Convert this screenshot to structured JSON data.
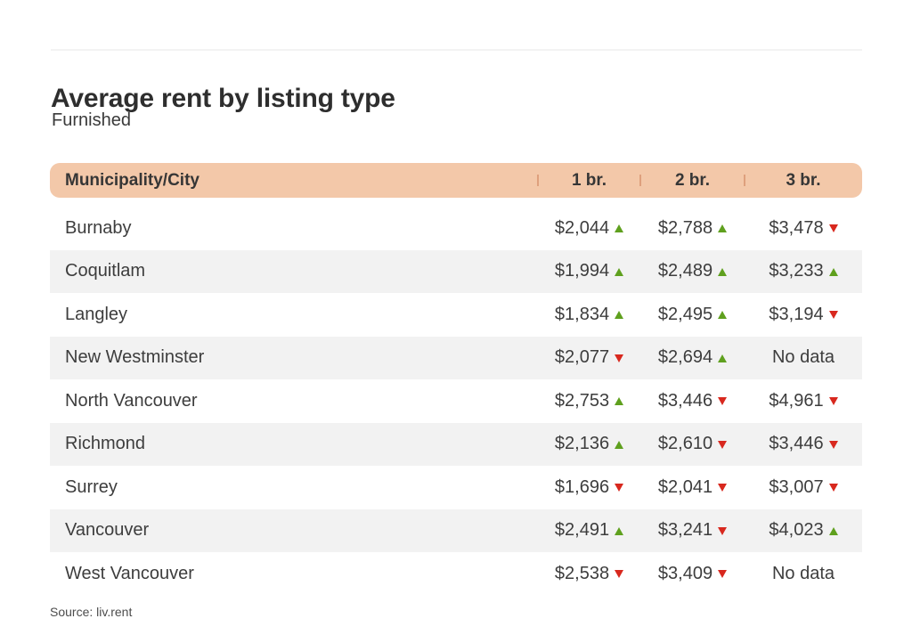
{
  "title": "Average rent by listing type",
  "subtitle": "Furnished",
  "source_label": "Source: liv.rent",
  "chart_data": {
    "type": "table",
    "title": "Average rent by listing type",
    "subtitle": "Furnished",
    "source": "liv.rent",
    "columns": [
      "Municipality/City",
      "1 br.",
      "2 br.",
      "3 br."
    ],
    "rows": [
      {
        "city": "Burnaby",
        "values": [
          {
            "amount": "$2,044",
            "trend": "up"
          },
          {
            "amount": "$2,788",
            "trend": "up"
          },
          {
            "amount": "$3,478",
            "trend": "down"
          }
        ]
      },
      {
        "city": "Coquitlam",
        "values": [
          {
            "amount": "$1,994",
            "trend": "up"
          },
          {
            "amount": "$2,489",
            "trend": "up"
          },
          {
            "amount": "$3,233",
            "trend": "up"
          }
        ]
      },
      {
        "city": "Langley",
        "values": [
          {
            "amount": "$1,834",
            "trend": "up"
          },
          {
            "amount": "$2,495",
            "trend": "up"
          },
          {
            "amount": "$3,194",
            "trend": "down"
          }
        ]
      },
      {
        "city": "New Westminster",
        "values": [
          {
            "amount": "$2,077",
            "trend": "down"
          },
          {
            "amount": "$2,694",
            "trend": "up"
          },
          {
            "amount": "No data",
            "trend": null
          }
        ]
      },
      {
        "city": "North Vancouver",
        "values": [
          {
            "amount": "$2,753",
            "trend": "up"
          },
          {
            "amount": "$3,446",
            "trend": "down"
          },
          {
            "amount": "$4,961",
            "trend": "down"
          }
        ]
      },
      {
        "city": "Richmond",
        "values": [
          {
            "amount": "$2,136",
            "trend": "up"
          },
          {
            "amount": "$2,610",
            "trend": "down"
          },
          {
            "amount": "$3,446",
            "trend": "down"
          }
        ]
      },
      {
        "city": "Surrey",
        "values": [
          {
            "amount": "$1,696",
            "trend": "down"
          },
          {
            "amount": "$2,041",
            "trend": "down"
          },
          {
            "amount": "$3,007",
            "trend": "down"
          }
        ]
      },
      {
        "city": "Vancouver",
        "values": [
          {
            "amount": "$2,491",
            "trend": "up"
          },
          {
            "amount": "$3,241",
            "trend": "down"
          },
          {
            "amount": "$4,023",
            "trend": "up"
          }
        ]
      },
      {
        "city": "West Vancouver",
        "values": [
          {
            "amount": "$2,538",
            "trend": "down"
          },
          {
            "amount": "$3,409",
            "trend": "down"
          },
          {
            "amount": "No data",
            "trend": null
          }
        ]
      }
    ]
  },
  "colors": {
    "header_bg": "#f3c8a9",
    "header_divider": "#dea07d",
    "stripe": "#f2f2f2",
    "trend_up": "#5fa01e",
    "trend_down": "#d8281e",
    "title_text": "#2e2e2e",
    "body_text": "#3d3d3d"
  }
}
